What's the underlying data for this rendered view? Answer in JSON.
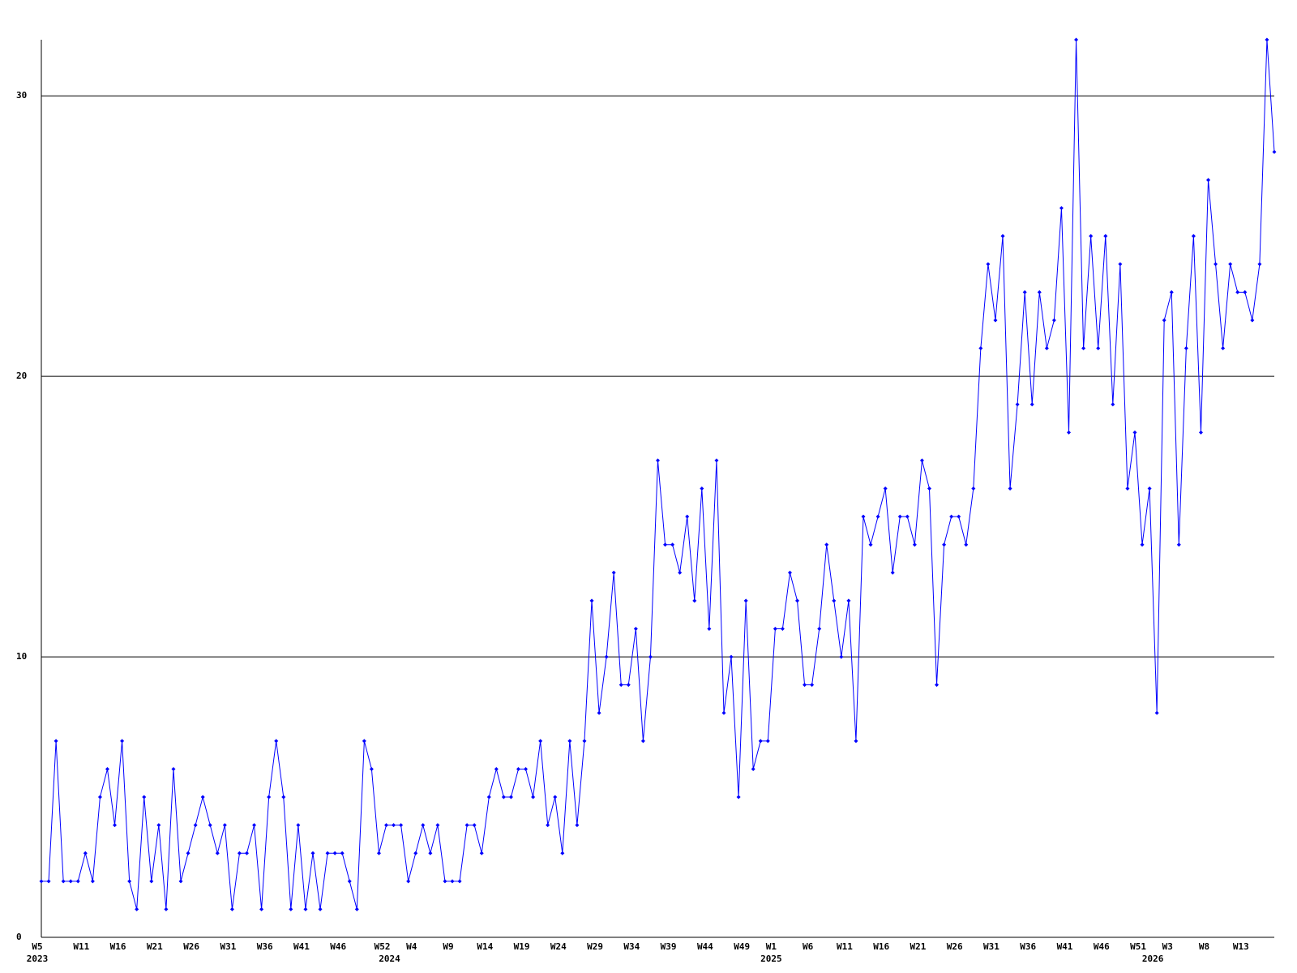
{
  "chart_data": {
    "type": "line",
    "color": "#0000ff",
    "grid": true,
    "ylim": [
      0,
      32
    ],
    "yticks": [
      0,
      10,
      20,
      30
    ],
    "categories": [
      "W5",
      null,
      null,
      null,
      null,
      null,
      "W11",
      null,
      null,
      null,
      null,
      "W16",
      null,
      null,
      null,
      null,
      "W21",
      null,
      null,
      null,
      null,
      "W26",
      null,
      null,
      null,
      null,
      "W31",
      null,
      null,
      null,
      null,
      "W36",
      null,
      null,
      null,
      null,
      "W41",
      null,
      null,
      null,
      null,
      "W46",
      null,
      null,
      null,
      null,
      null,
      "W52",
      null,
      null,
      null,
      "W4",
      null,
      null,
      null,
      null,
      "W9",
      null,
      null,
      null,
      null,
      "W14",
      null,
      null,
      null,
      null,
      "W19",
      null,
      null,
      null,
      null,
      "W24",
      null,
      null,
      null,
      null,
      "W29",
      null,
      null,
      null,
      null,
      "W34",
      null,
      null,
      null,
      null,
      "W39",
      null,
      null,
      null,
      null,
      "W44",
      null,
      null,
      null,
      null,
      "W49",
      null,
      null,
      null,
      "W1",
      null,
      null,
      null,
      null,
      "W6",
      null,
      null,
      null,
      null,
      "W11",
      null,
      null,
      null,
      null,
      "W16",
      null,
      null,
      null,
      null,
      "W21",
      null,
      null,
      null,
      null,
      "W26",
      null,
      null,
      null,
      null,
      "W31",
      null,
      null,
      null,
      null,
      "W36",
      null,
      null,
      null,
      null,
      "W41",
      null,
      null,
      null,
      null,
      "W46",
      null,
      null,
      null,
      null,
      "W51",
      null,
      null,
      null,
      "W3",
      null,
      null,
      null,
      null,
      "W8",
      null,
      null,
      null,
      null,
      "W13",
      null,
      null,
      null,
      null
    ],
    "category_years": [
      "2023",
      null,
      null,
      null,
      null,
      null,
      null,
      null,
      null,
      null,
      null,
      null,
      null,
      null,
      null,
      null,
      null,
      null,
      null,
      null,
      null,
      null,
      null,
      null,
      null,
      null,
      null,
      null,
      null,
      null,
      null,
      null,
      null,
      null,
      null,
      null,
      null,
      null,
      null,
      null,
      null,
      null,
      null,
      null,
      null,
      null,
      null,
      null,
      "2024",
      null,
      null,
      null,
      null,
      null,
      null,
      null,
      null,
      null,
      null,
      null,
      null,
      null,
      null,
      null,
      null,
      null,
      null,
      null,
      null,
      null,
      null,
      null,
      null,
      null,
      null,
      null,
      null,
      null,
      null,
      null,
      null,
      null,
      null,
      null,
      null,
      null,
      null,
      null,
      null,
      null,
      null,
      null,
      null,
      null,
      null,
      null,
      null,
      null,
      null,
      null,
      "2025",
      null,
      null,
      null,
      null,
      null,
      null,
      null,
      null,
      null,
      null,
      null,
      null,
      null,
      null,
      null,
      null,
      null,
      null,
      null,
      null,
      null,
      null,
      null,
      null,
      null,
      null,
      null,
      null,
      null,
      null,
      null,
      null,
      null,
      null,
      null,
      null,
      null,
      null,
      null,
      null,
      null,
      null,
      null,
      null,
      null,
      null,
      null,
      null,
      null,
      null,
      null,
      "2026",
      null,
      null,
      null,
      null,
      null,
      null,
      null,
      null,
      null,
      null,
      null,
      null,
      null,
      null,
      null,
      null
    ],
    "values": [
      2,
      2,
      7,
      2,
      2,
      2,
      3,
      2,
      5,
      6,
      4,
      7,
      2,
      1,
      5,
      2,
      4,
      1,
      6,
      2,
      3,
      4,
      5,
      4,
      3,
      4,
      1,
      3,
      3,
      4,
      1,
      5,
      7,
      5,
      1,
      4,
      1,
      3,
      1,
      3,
      3,
      3,
      2,
      1,
      7,
      6,
      3,
      4,
      4,
      4,
      2,
      3,
      4,
      3,
      4,
      2,
      2,
      2,
      4,
      4,
      3,
      5,
      6,
      5,
      5,
      6,
      6,
      5,
      7,
      4,
      5,
      3,
      7,
      4,
      7,
      12,
      8,
      10,
      13,
      9,
      9,
      11,
      7,
      10,
      17,
      14,
      14,
      13,
      15,
      12,
      16,
      11,
      17,
      8,
      10,
      5,
      12,
      6,
      7,
      7,
      11,
      11,
      13,
      12,
      9,
      9,
      11,
      14,
      12,
      10,
      12,
      7,
      15,
      14,
      15,
      16,
      13,
      15,
      15,
      14,
      17,
      16,
      9,
      14,
      15,
      15,
      14,
      16,
      21,
      24,
      22,
      25,
      16,
      19,
      23,
      19,
      23,
      21,
      22,
      26,
      18,
      32,
      21,
      25,
      21,
      25,
      19,
      24,
      16,
      18,
      14,
      16,
      8,
      22,
      23,
      14,
      21,
      25,
      18,
      27,
      24,
      21,
      24,
      23,
      23,
      22,
      24,
      32,
      28
    ]
  }
}
